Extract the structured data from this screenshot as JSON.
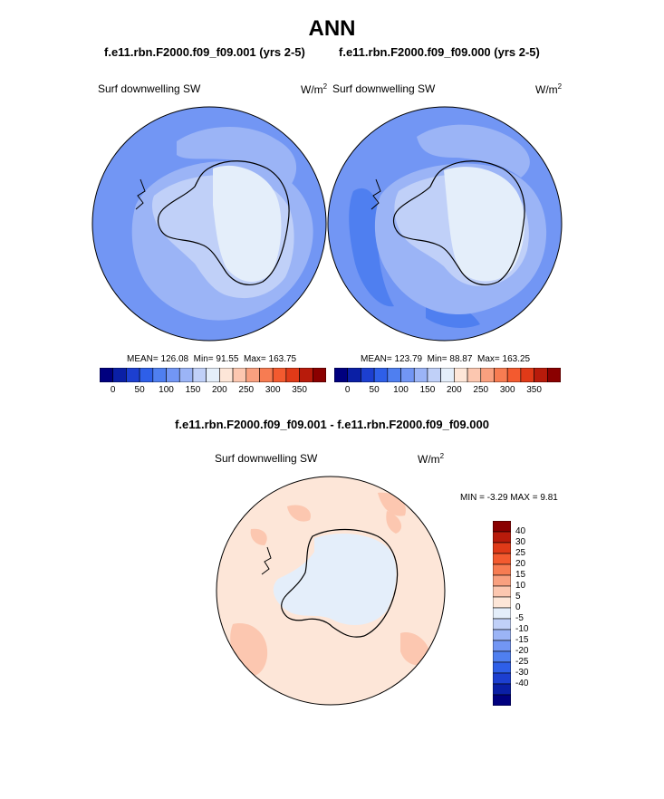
{
  "header": {
    "title": "ANN",
    "left_case": "f.e11.rbn.F2000.f09_f09.001 (yrs 2-5)",
    "right_case": "f.e11.rbn.F2000.f09_f09.000 (yrs 2-5)"
  },
  "panel_left": {
    "variable": "Surf downwelling SW",
    "units": "W/m",
    "units_exp": "2",
    "mean_text": "MEAN= 126.08",
    "min_text": "Min=  91.55",
    "max_text": "Max= 163.75"
  },
  "panel_right": {
    "variable": "Surf downwelling SW",
    "units": "W/m",
    "units_exp": "2",
    "mean_text": "MEAN= 123.79",
    "min_text": "Min=  88.87",
    "max_text": "Max= 163.25"
  },
  "abs_colorbar": {
    "colors": [
      "#00007f",
      "#0a1fa5",
      "#1c3fd0",
      "#2e5fe8",
      "#4f7ff0",
      "#7296f4",
      "#9bb4f6",
      "#c0d0f8",
      "#e4eefa",
      "#fde6d8",
      "#fcc7b0",
      "#f9a07f",
      "#f77c52",
      "#f35a2f",
      "#e03a18",
      "#b81b0b",
      "#8a0000"
    ],
    "tick_labels": [
      "0",
      "50",
      "100",
      "150",
      "200",
      "250",
      "300",
      "350"
    ]
  },
  "diff": {
    "title": "f.e11.rbn.F2000.f09_f09.001 - f.e11.rbn.F2000.f09_f09.000",
    "variable": "Surf downwelling SW",
    "units": "W/m",
    "units_exp": "2",
    "minmax_text": "MIN =  -3.29 MAX =   9.81",
    "colors": [
      "#8a0000",
      "#b81b0b",
      "#e03a18",
      "#f35a2f",
      "#f77c52",
      "#f9a07f",
      "#fcc7b0",
      "#fde6d8",
      "#e4eefa",
      "#c0d0f8",
      "#9bb4f6",
      "#7296f4",
      "#4f7ff0",
      "#2e5fe8",
      "#1c3fd0",
      "#0a1fa5",
      "#00007f"
    ],
    "tick_labels": [
      "40",
      "30",
      "25",
      "20",
      "15",
      "10",
      "5",
      "0",
      "-5",
      "-10",
      "-15",
      "-20",
      "-25",
      "-30",
      "-40"
    ]
  }
}
